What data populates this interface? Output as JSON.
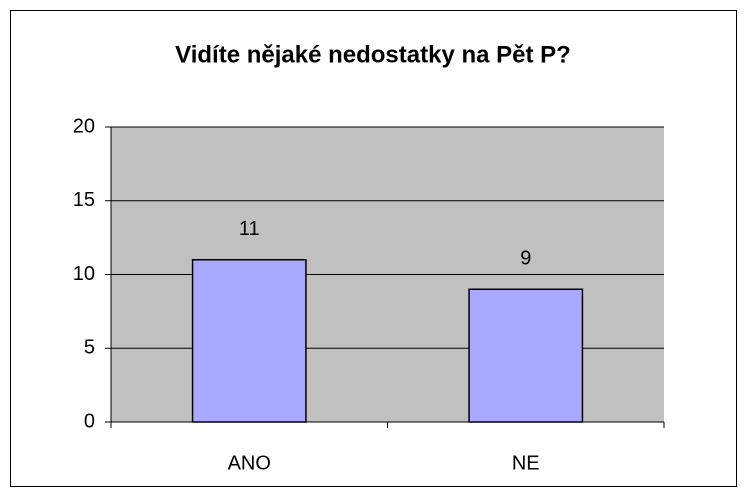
{
  "chart_data": {
    "type": "bar",
    "title": "Vidíte nějaké nedostatky na Pět P?",
    "categories": [
      "ANO",
      "NE"
    ],
    "values": [
      11,
      9
    ],
    "color": "#a9a9ff",
    "ylim": [
      0,
      20
    ],
    "yticks": [
      0,
      5,
      10,
      15,
      20
    ],
    "grid": true
  }
}
